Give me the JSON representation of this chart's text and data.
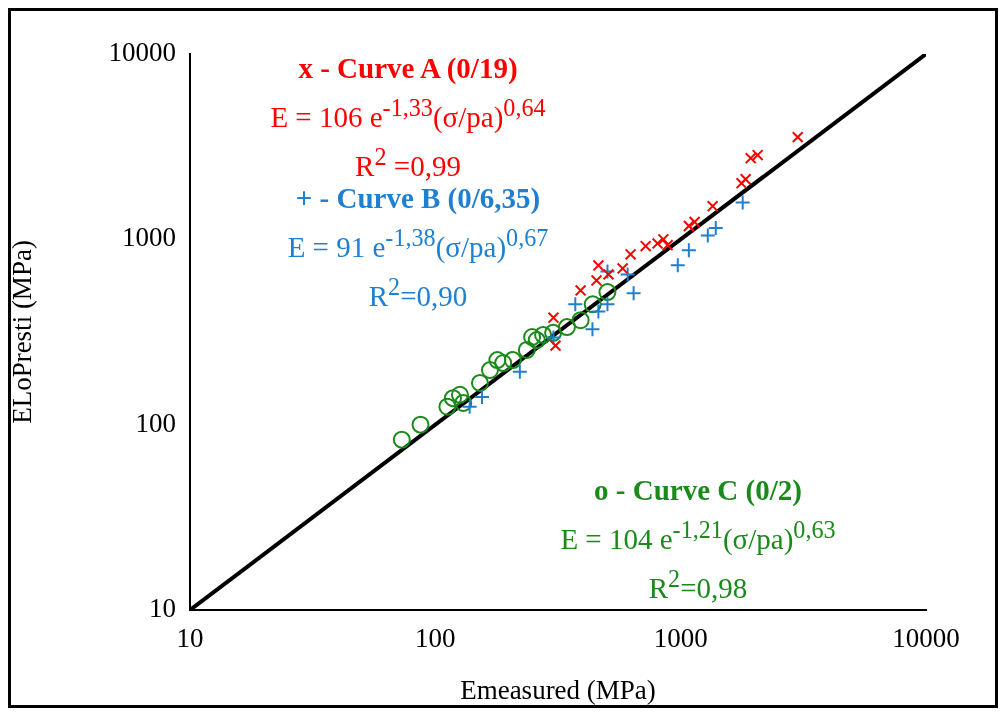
{
  "chart_data": {
    "type": "scatter",
    "xlabel": "Emeasured (MPa)",
    "ylabel": "ELoPresti (MPa)",
    "log": "xy",
    "xlim": [
      10,
      10000
    ],
    "ylim": [
      10,
      10000
    ],
    "xticks": [
      10,
      100,
      1000,
      10000
    ],
    "yticks": [
      10,
      100,
      1000,
      10000
    ],
    "grid": false,
    "legend": false,
    "series": [
      {
        "name": "x - Curve A (0/19)",
        "color": "#ff0000",
        "marker": "x",
        "x": [
          3000,
          2060,
          1930,
          1840,
          1770,
          1350,
          1140,
          1080,
          850,
          805,
          885,
          720,
          625,
          580,
          508,
          454,
          391,
          303,
          309,
          462
        ],
        "values": [
          3560,
          2850,
          2740,
          2110,
          2010,
          1510,
          1240,
          1180,
          1000,
          950,
          930,
          920,
          830,
          697,
          647,
          600,
          530,
          378,
          267,
          723
        ]
      },
      {
        "name": "+ - Curve B (0/6,35)",
        "color": "#1f7fd0",
        "marker": "cross",
        "x": [
          1790,
          1390,
          1290,
          1080,
          973,
          643,
          608,
          503,
          437,
          372,
          462,
          303,
          221,
          155,
          138,
          503
        ],
        "values": [
          1580,
          1150,
          1050,
          873,
          724,
          511,
          646,
          671,
          327,
          446,
          408,
          295,
          193,
          141,
          125,
          446
        ]
      },
      {
        "name": "o - Curve C (0/2)",
        "color": "#1a8a1a",
        "marker": "circle",
        "x": [
          73,
          87,
          112,
          118,
          126,
          152,
          167,
          189,
          207,
          236,
          259,
          275,
          302,
          344,
          391,
          438,
          503,
          130,
          179,
          248
        ],
        "values": [
          83,
          100,
          125,
          139,
          145,
          168,
          197,
          215,
          223,
          253,
          286,
          305,
          313,
          336,
          366,
          446,
          519,
          131,
          223,
          297
        ]
      },
      {
        "type": "line",
        "color": "#000000",
        "marker": "none",
        "line_style": "solid",
        "x": [
          10,
          10000
        ],
        "values": [
          10,
          10000
        ]
      }
    ],
    "annotations": [
      "E = 106 e$^{-1,33}$(σ/pa)$^{0,64}$",
      "R$^{2}$ =0,99",
      "E = 91 e$^{-1,38}$(σ/pa)$^{0,67}$",
      "R$^{2}$=0,90",
      "E = 104 e$^{-1,21}$(σ/pa)$^{0,63}$",
      "R$^{2}$=0,98"
    ]
  }
}
